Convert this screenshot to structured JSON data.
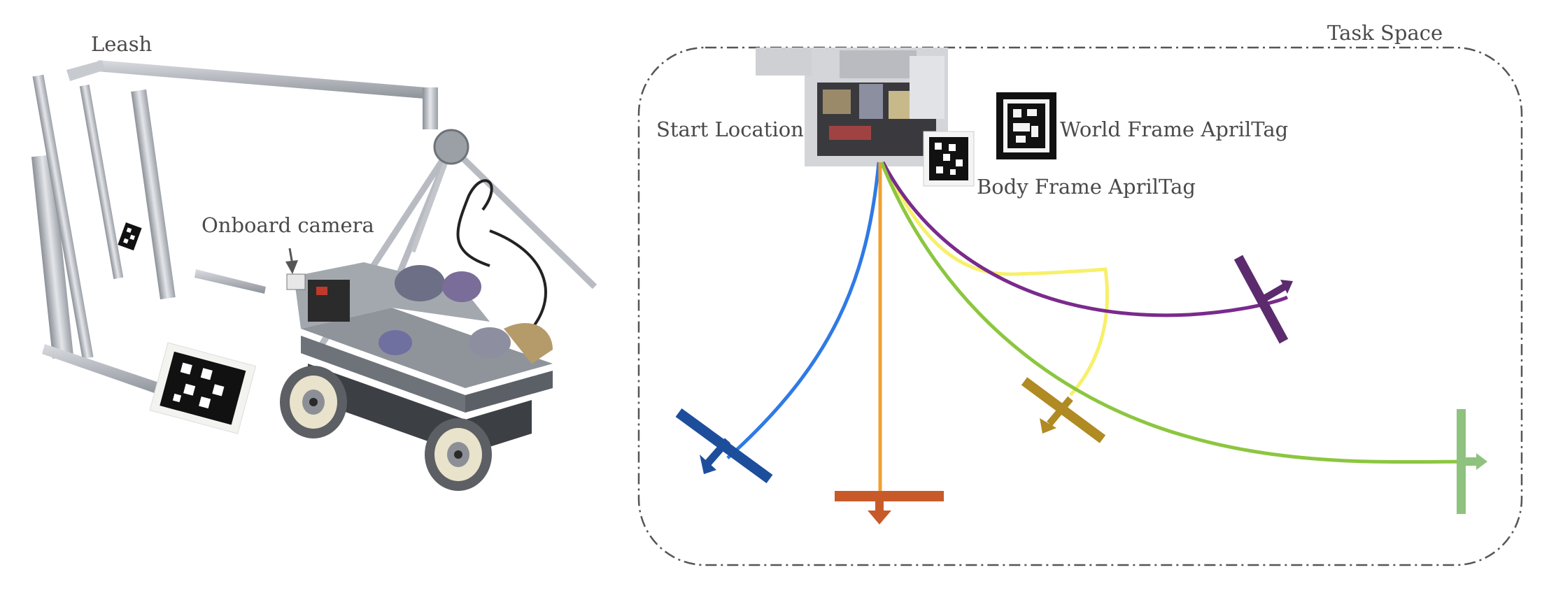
{
  "labels": {
    "leash": "Leash",
    "onboard_camera": "Onboard camera",
    "task_space": "Task Space",
    "start_location": "Start Location",
    "world_frame_tag": "World Frame AprilTag",
    "body_frame_tag": "Body Frame AprilTag"
  },
  "trajectory_colors": {
    "blue": "#2f7ae5",
    "orange": "#f0a030",
    "yellow": "#f7f06a",
    "purple": "#7a2a8c",
    "green": "#8cc63f"
  },
  "goal_marker_colors": {
    "blue": "#1d4e9c",
    "orange": "#c85a2a",
    "yellow": "#b08a22",
    "purple": "#5b2b6e",
    "green": "#8fc27f"
  },
  "icons": {
    "world_tag": "apriltag-icon",
    "body_tag": "apriltag-icon",
    "robot_photo": "mecanum-robot-illustration"
  }
}
